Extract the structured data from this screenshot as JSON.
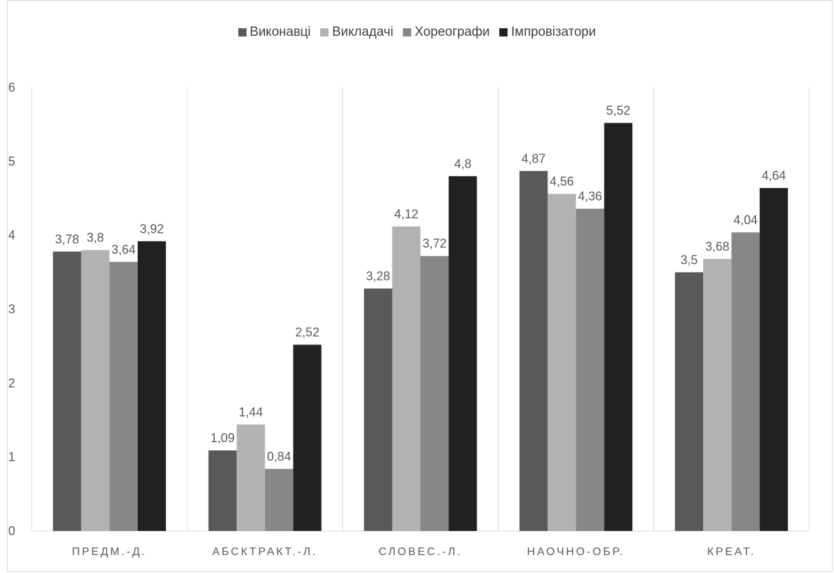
{
  "chart_data": {
    "type": "bar",
    "title": "",
    "xlabel": "",
    "ylabel": "",
    "ylim": [
      0,
      6
    ],
    "yticks": [
      0,
      1,
      2,
      3,
      4,
      5,
      6
    ],
    "grid": "vertical separators between categories",
    "legend_position": "top",
    "categories": [
      "ПРЕДМ.-Д.",
      "АБСКТРАКТ.-Л.",
      "СЛОВЕС.-Л.",
      "НАОЧНО-ОБР.",
      "КРЕАТ."
    ],
    "series": [
      {
        "name": "Виконавці",
        "color": "#595959",
        "values": [
          3.78,
          1.09,
          3.28,
          4.87,
          3.5
        ],
        "labels": [
          "3,78",
          "1,09",
          "3,28",
          "4,87",
          "3,5"
        ]
      },
      {
        "name": "Викладачі",
        "color": "#b2b2b2",
        "values": [
          3.8,
          1.44,
          4.12,
          4.56,
          3.68
        ],
        "labels": [
          "3,8",
          "1,44",
          "4,12",
          "4,56",
          "3,68"
        ]
      },
      {
        "name": "Хореографи",
        "color": "#878787",
        "values": [
          3.64,
          0.84,
          3.72,
          4.36,
          4.04
        ],
        "labels": [
          "3,64",
          "0,84",
          "3,72",
          "4,36",
          "4,04"
        ]
      },
      {
        "name": "Імпровізатори",
        "color": "#212121",
        "values": [
          3.92,
          2.52,
          4.8,
          5.52,
          4.64
        ],
        "labels": [
          "3,92",
          "2,52",
          "4,8",
          "5,52",
          "4,64"
        ]
      }
    ]
  }
}
